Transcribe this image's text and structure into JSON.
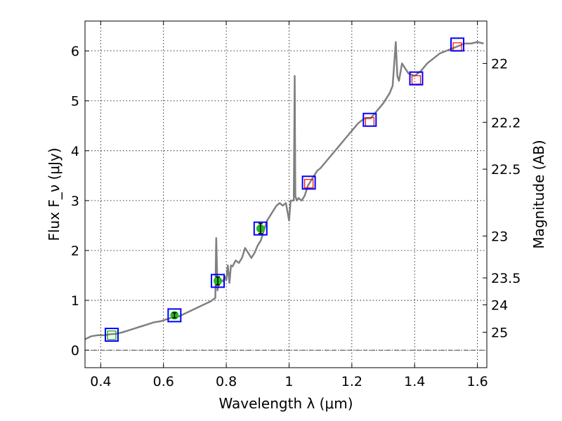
{
  "chart_data": {
    "type": "line",
    "xlabel": "Wavelength λ (μm)",
    "ylabel": "Flux F_ν (μJy)",
    "ylabel_right": "Magnitude (AB)",
    "xlim": [
      0.35,
      1.63
    ],
    "ylim": [
      -0.35,
      6.6
    ],
    "x_ticks": [
      0.4,
      0.6,
      0.8,
      1.0,
      1.2,
      1.4,
      1.6
    ],
    "x_tick_labels": [
      "0.4",
      "0.6",
      "0.8",
      "1",
      "1.2",
      "1.4",
      "1.6"
    ],
    "y_ticks": [
      0,
      1,
      2,
      3,
      4,
      5,
      6
    ],
    "y_tick_labels": [
      "0",
      "1",
      "2",
      "3",
      "4",
      "5",
      "6"
    ],
    "right_ticks": [
      {
        "flux": 5.75,
        "label": "22"
      },
      {
        "flux": 4.57,
        "label": "22.2"
      },
      {
        "flux": 3.63,
        "label": "22.5"
      },
      {
        "flux": 2.29,
        "label": "23"
      },
      {
        "flux": 1.45,
        "label": "23.5"
      },
      {
        "flux": 0.91,
        "label": "24"
      },
      {
        "flux": 0.36,
        "label": "25"
      }
    ],
    "grid": true,
    "zero_line": true,
    "series": [
      {
        "type": "line",
        "color": "#808080",
        "x": [
          0.35,
          0.37,
          0.39,
          0.41,
          0.43,
          0.45,
          0.47,
          0.49,
          0.51,
          0.53,
          0.55,
          0.57,
          0.59,
          0.61,
          0.63,
          0.65,
          0.67,
          0.69,
          0.71,
          0.73,
          0.75,
          0.765,
          0.768,
          0.772,
          0.775,
          0.78,
          0.785,
          0.79,
          0.795,
          0.8,
          0.805,
          0.81,
          0.815,
          0.82,
          0.83,
          0.84,
          0.85,
          0.86,
          0.87,
          0.88,
          0.89,
          0.9,
          0.91,
          0.92,
          0.93,
          0.94,
          0.95,
          0.96,
          0.97,
          0.98,
          0.99,
          1.0,
          1.005,
          1.01,
          1.015,
          1.018,
          1.02,
          1.022,
          1.025,
          1.03,
          1.04,
          1.05,
          1.06,
          1.07,
          1.08,
          1.09,
          1.1,
          1.12,
          1.14,
          1.16,
          1.18,
          1.2,
          1.22,
          1.24,
          1.26,
          1.28,
          1.3,
          1.32,
          1.33,
          1.34,
          1.345,
          1.35,
          1.36,
          1.38,
          1.4,
          1.42,
          1.44,
          1.46,
          1.48,
          1.5,
          1.52,
          1.54,
          1.56,
          1.58,
          1.6,
          1.62
        ],
        "y": [
          0.22,
          0.28,
          0.3,
          0.3,
          0.32,
          0.33,
          0.36,
          0.4,
          0.44,
          0.48,
          0.52,
          0.56,
          0.58,
          0.62,
          0.66,
          0.68,
          0.74,
          0.8,
          0.86,
          0.92,
          0.98,
          1.05,
          2.25,
          1.2,
          1.3,
          1.35,
          1.4,
          1.38,
          1.48,
          1.4,
          1.7,
          1.35,
          1.7,
          1.68,
          1.8,
          1.75,
          1.85,
          2.05,
          1.95,
          1.85,
          1.95,
          2.1,
          2.2,
          2.4,
          2.6,
          2.7,
          2.8,
          2.9,
          2.95,
          2.9,
          2.95,
          2.6,
          3.0,
          3.0,
          3.0,
          5.5,
          3.1,
          3.05,
          3.0,
          3.05,
          3.0,
          3.1,
          3.3,
          3.4,
          3.5,
          3.6,
          3.65,
          3.8,
          3.95,
          4.1,
          4.25,
          4.4,
          4.55,
          4.65,
          4.65,
          4.8,
          4.95,
          5.15,
          5.3,
          6.18,
          5.5,
          5.4,
          5.75,
          5.55,
          5.5,
          5.6,
          5.75,
          5.85,
          5.95,
          6.0,
          6.05,
          6.1,
          6.15,
          6.15,
          6.18,
          6.15
        ]
      }
    ],
    "markers": {
      "blue_squares": {
        "color": "#0000ff",
        "x": [
          0.435,
          0.635,
          0.773,
          0.909,
          1.063,
          1.257,
          1.405,
          1.536
        ],
        "y": [
          0.31,
          0.7,
          1.39,
          2.44,
          3.36,
          4.62,
          5.45,
          6.13
        ]
      },
      "red_squares": {
        "color": "#ff0000",
        "x": [
          1.063,
          1.257,
          1.405,
          1.536
        ],
        "y": [
          3.34,
          4.58,
          5.42,
          6.08
        ]
      },
      "green_squares": {
        "color": "#00a000",
        "x": [
          0.435
        ],
        "y": [
          0.3
        ]
      },
      "green_points": {
        "color": "#22bb22",
        "x": [
          0.635,
          0.773,
          0.909
        ],
        "y": [
          0.7,
          1.39,
          2.44
        ],
        "err": [
          0.05,
          0.08,
          0.1
        ]
      }
    }
  }
}
